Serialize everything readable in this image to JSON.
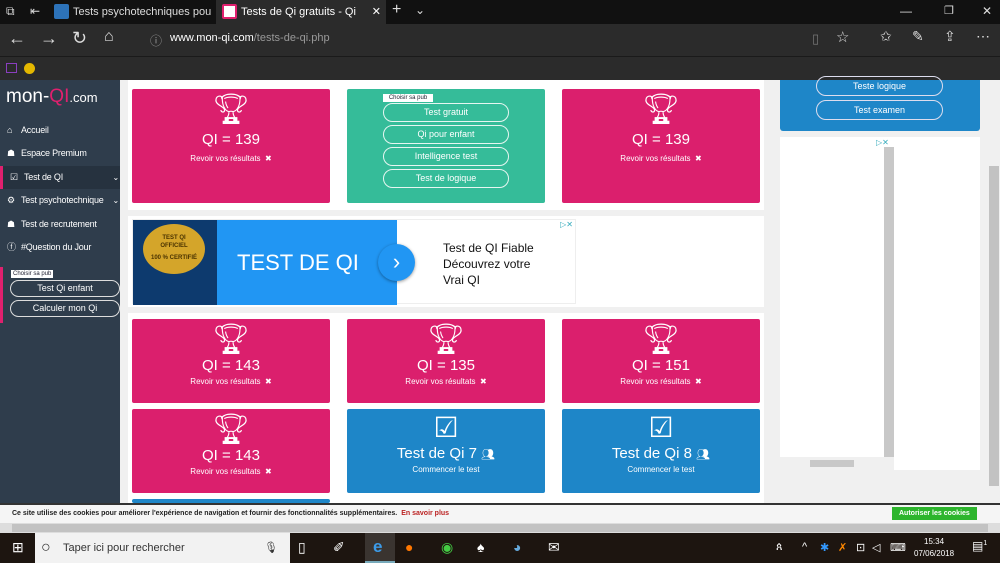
{
  "browser": {
    "tabs": [
      {
        "label": "Tests psychotechniques pou",
        "active": false
      },
      {
        "label": "Tests de Qi gratuits - Qi",
        "active": true
      }
    ],
    "url_domain": "www.mon-qi.com",
    "url_path": "/tests-de-qi.php"
  },
  "sidebar": {
    "logo": {
      "a": "mon-",
      "b": "QI",
      "c": ".com"
    },
    "items": [
      {
        "label": "Accueil",
        "icon": "home-icon"
      },
      {
        "label": "Espace Premium",
        "icon": "users-icon"
      },
      {
        "label": "Test de QI",
        "icon": "checkbox-icon"
      },
      {
        "label": "Test psychotechnique",
        "icon": "gears-icon"
      },
      {
        "label": "Test de recrutement",
        "icon": "group-icon"
      },
      {
        "label": "#Question du Jour",
        "icon": "facebook-icon"
      }
    ],
    "ad_choice": "Choisir sa pub",
    "buttons": [
      "Test Qi enfant",
      "Calculer mon Qi"
    ]
  },
  "main": {
    "row1": [
      {
        "qi": "QI = 139",
        "link": "Revoir vos résultats"
      },
      {
        "qi": "QI = 139",
        "link": "Revoir vos résultats"
      }
    ],
    "ad_links": {
      "choice": "Choisir sa pub",
      "buttons": [
        "Test gratuit",
        "Qi pour enfant",
        "Intelligence test",
        "Test de logique"
      ]
    },
    "banner": {
      "seal_line1": "TEST QI",
      "seal_line2": "OFFICIEL",
      "seal_line3": "100 % CERTIFIÉ",
      "headline": "TEST DE QI",
      "text1": "Test de QI Fiable",
      "text2": "Découvrez votre",
      "text3": "Vrai QI"
    },
    "row2": [
      {
        "qi": "QI = 143",
        "link": "Revoir vos résultats"
      },
      {
        "qi": "QI = 135",
        "link": "Revoir vos résultats"
      },
      {
        "qi": "QI = 151",
        "link": "Revoir vos résultats"
      }
    ],
    "row3": [
      {
        "qi": "QI = 143",
        "link": "Revoir vos résultats"
      },
      {
        "title": "Test de Qi 7",
        "link": "Commencer le test"
      },
      {
        "title": "Test de Qi 8",
        "link": "Commencer le test"
      }
    ]
  },
  "right": {
    "buttons": [
      "Teste logique",
      "Test examen"
    ]
  },
  "cookie": {
    "text": "Ce site utilise des cookies pour améliorer l'expérience de navigation et fournir des fonctionnalités supplémentaires.",
    "link": "En savoir plus",
    "accept": "Autoriser les cookies"
  },
  "taskbar": {
    "search": "Taper ici pour rechercher",
    "time": "15:34",
    "date": "07/06/2018",
    "notifications": "1"
  },
  "colors": {
    "pink": "#db1f6d",
    "blue": "#1e86c8",
    "green": "#35bc99",
    "sidebar": "#2f3d4c"
  }
}
